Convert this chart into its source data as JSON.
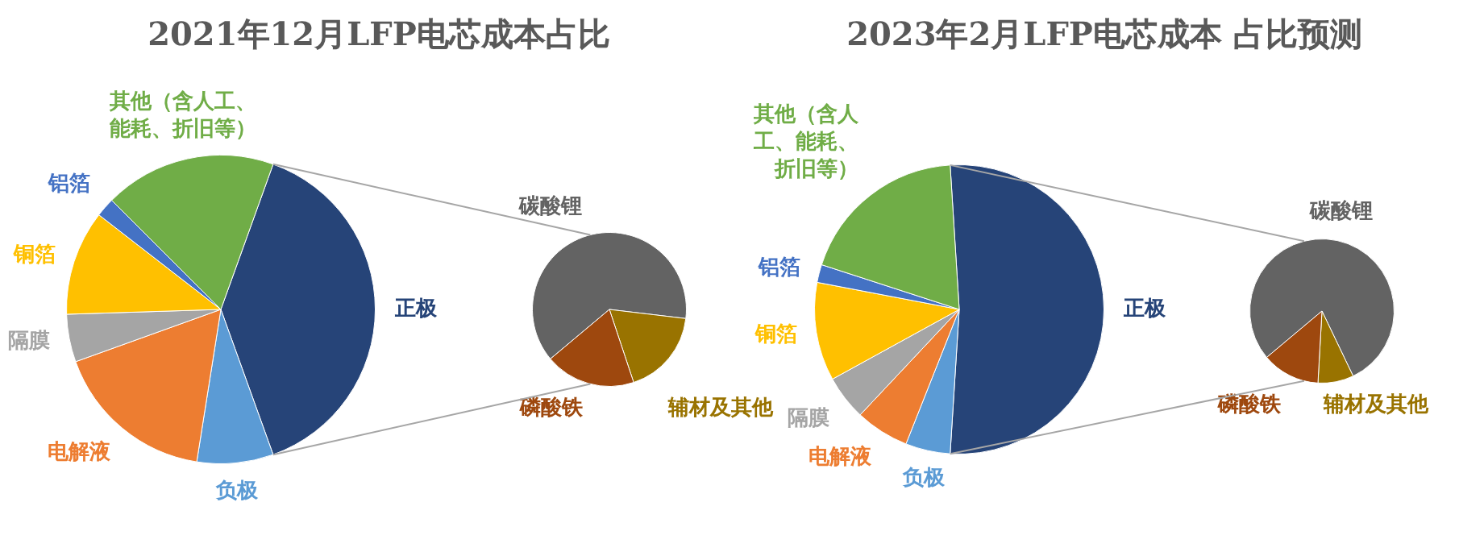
{
  "chart_data": [
    {
      "type": "pie",
      "title": "2021年12月LFP电芯成本占比",
      "categories": [
        "正极",
        "负极",
        "电解液",
        "隔膜",
        "铜箔",
        "铝箔",
        "其他（含人工、能耗、折旧等）"
      ],
      "values": [
        39,
        8,
        17,
        5,
        11,
        2,
        18
      ],
      "colors": [
        "#264478",
        "#5b9bd5",
        "#ed7d31",
        "#a5a5a5",
        "#ffc000",
        "#4472c4",
        "#70ad47"
      ]
    },
    {
      "type": "pie",
      "categories": [
        "碳酸锂",
        "辅材及其他",
        "磷酸铁"
      ],
      "values": [
        63,
        18,
        19
      ],
      "colors": [
        "#636363",
        "#997300",
        "#9e480e"
      ]
    },
    {
      "type": "pie",
      "title": "2023年2月LFP电芯成本 占比预测",
      "categories": [
        "正极",
        "负极",
        "电解液",
        "隔膜",
        "铜箔",
        "铝箔",
        "其他（含人工、能耗、折旧等）"
      ],
      "values": [
        52,
        5,
        6,
        5,
        11,
        2,
        19
      ],
      "colors": [
        "#264478",
        "#5b9bd5",
        "#ed7d31",
        "#a5a5a5",
        "#ffc000",
        "#4472c4",
        "#70ad47"
      ]
    },
    {
      "type": "pie",
      "categories": [
        "碳酸锂",
        "辅材及其他",
        "磷酸铁"
      ],
      "values": [
        79,
        8,
        13
      ],
      "colors": [
        "#636363",
        "#997300",
        "#9e480e"
      ]
    }
  ]
}
